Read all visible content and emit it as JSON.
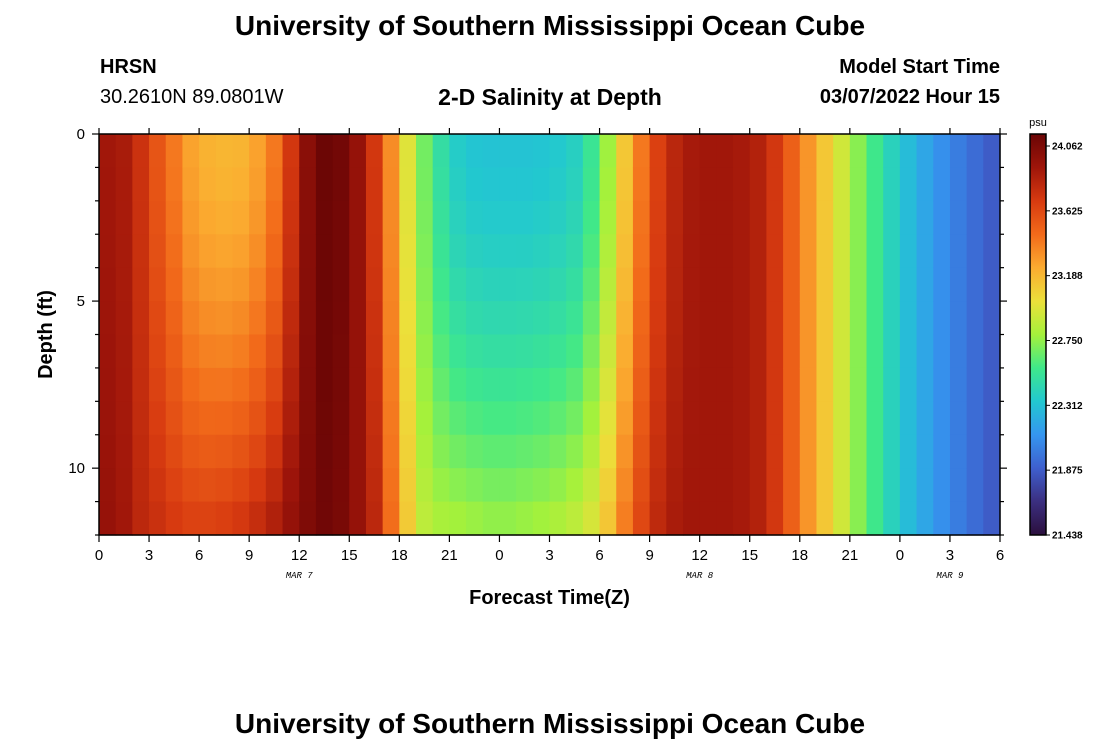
{
  "header": {
    "title": "University of Southern Mississippi Ocean Cube",
    "station": "HRSN",
    "coords": "30.2610N  89.0801W",
    "subtitle": "2-D Salinity at Depth",
    "start_label": "Model Start Time",
    "start_value": "03/07/2022 Hour 15"
  },
  "footer": {
    "title": "University of Southern Mississippi Ocean Cube"
  },
  "chart_data": {
    "type": "heatmap",
    "title": "2-D Salinity at Depth",
    "xlabel": "Forecast Time(Z)",
    "ylabel": "Depth (ft)",
    "x_hours_range": [
      0,
      54
    ],
    "y_range": [
      0,
      12
    ],
    "y_inverted": true,
    "x_ticks": [
      {
        "h": 0,
        "label": "0"
      },
      {
        "h": 3,
        "label": "3"
      },
      {
        "h": 6,
        "label": "6"
      },
      {
        "h": 9,
        "label": "9"
      },
      {
        "h": 12,
        "label": "12"
      },
      {
        "h": 15,
        "label": "15"
      },
      {
        "h": 18,
        "label": "18"
      },
      {
        "h": 21,
        "label": "21"
      },
      {
        "h": 24,
        "label": "0"
      },
      {
        "h": 27,
        "label": "3"
      },
      {
        "h": 30,
        "label": "6"
      },
      {
        "h": 33,
        "label": "9"
      },
      {
        "h": 36,
        "label": "12"
      },
      {
        "h": 39,
        "label": "15"
      },
      {
        "h": 42,
        "label": "18"
      },
      {
        "h": 45,
        "label": "21"
      },
      {
        "h": 48,
        "label": "0"
      },
      {
        "h": 51,
        "label": "3"
      },
      {
        "h": 54,
        "label": "6"
      }
    ],
    "date_labels": [
      {
        "h": 12,
        "label": "MAR 7"
      },
      {
        "h": 36,
        "label": "MAR 8"
      },
      {
        "h": 51,
        "label": "MAR 9"
      }
    ],
    "y_ticks": [
      {
        "v": 0,
        "label": "0"
      },
      {
        "v": 5,
        "label": "5"
      },
      {
        "v": 10,
        "label": "10"
      }
    ],
    "colorbar": {
      "unit": "psu",
      "min": 21.438,
      "max": 24.19,
      "ticks": [
        "24.062",
        "23.625",
        "23.188",
        "22.750",
        "22.312",
        "21.875",
        "21.438"
      ],
      "colors": [
        "#2b0f3d",
        "#3b2f80",
        "#3e5fcd",
        "#3596f0",
        "#22c8d0",
        "#3fe88a",
        "#a5f13b",
        "#ece03a",
        "#fbab30",
        "#f26a1a",
        "#d73a10",
        "#9e150a",
        "#6a0505"
      ]
    },
    "depth_levels": [
      0,
      1,
      2,
      3,
      4,
      5,
      6,
      7,
      8,
      9,
      10,
      11,
      12
    ],
    "hours": [
      0,
      1,
      2,
      3,
      4,
      5,
      6,
      7,
      8,
      9,
      10,
      11,
      12,
      13,
      14,
      15,
      16,
      17,
      18,
      19,
      20,
      21,
      22,
      23,
      24,
      25,
      26,
      27,
      28,
      29,
      30,
      31,
      32,
      33,
      34,
      35,
      36,
      37,
      38,
      39,
      40,
      41,
      42,
      43,
      44,
      45,
      46,
      47,
      48,
      49,
      50,
      51,
      52,
      53,
      54
    ],
    "surface_salinity": [
      23.95,
      23.92,
      23.78,
      23.6,
      23.45,
      23.3,
      23.24,
      23.22,
      23.23,
      23.3,
      23.45,
      23.75,
      24.05,
      24.18,
      24.15,
      24.0,
      23.75,
      23.38,
      23.0,
      22.7,
      22.5,
      22.38,
      22.34,
      22.33,
      22.33,
      22.33,
      22.34,
      22.36,
      22.4,
      22.55,
      22.8,
      23.15,
      23.45,
      23.7,
      23.85,
      23.93,
      23.95,
      23.95,
      23.93,
      23.88,
      23.75,
      23.55,
      23.35,
      23.15,
      22.95,
      22.75,
      22.58,
      22.42,
      22.3,
      22.2,
      22.1,
      22.02,
      21.95,
      21.88,
      21.8
    ],
    "bottom_salinity": [
      24.0,
      23.95,
      23.85,
      23.8,
      23.75,
      23.72,
      23.72,
      23.74,
      23.78,
      23.84,
      23.92,
      24.02,
      24.1,
      24.16,
      24.12,
      24.0,
      23.85,
      23.5,
      23.15,
      22.9,
      22.85,
      22.84,
      22.82,
      22.8,
      22.8,
      22.82,
      22.84,
      22.87,
      22.92,
      23.0,
      23.18,
      23.45,
      23.68,
      23.84,
      23.92,
      23.95,
      23.95,
      23.95,
      23.93,
      23.88,
      23.75,
      23.55,
      23.35,
      23.15,
      22.95,
      22.75,
      22.58,
      22.42,
      22.3,
      22.2,
      22.1,
      22.02,
      21.95,
      21.88,
      21.8
    ]
  }
}
